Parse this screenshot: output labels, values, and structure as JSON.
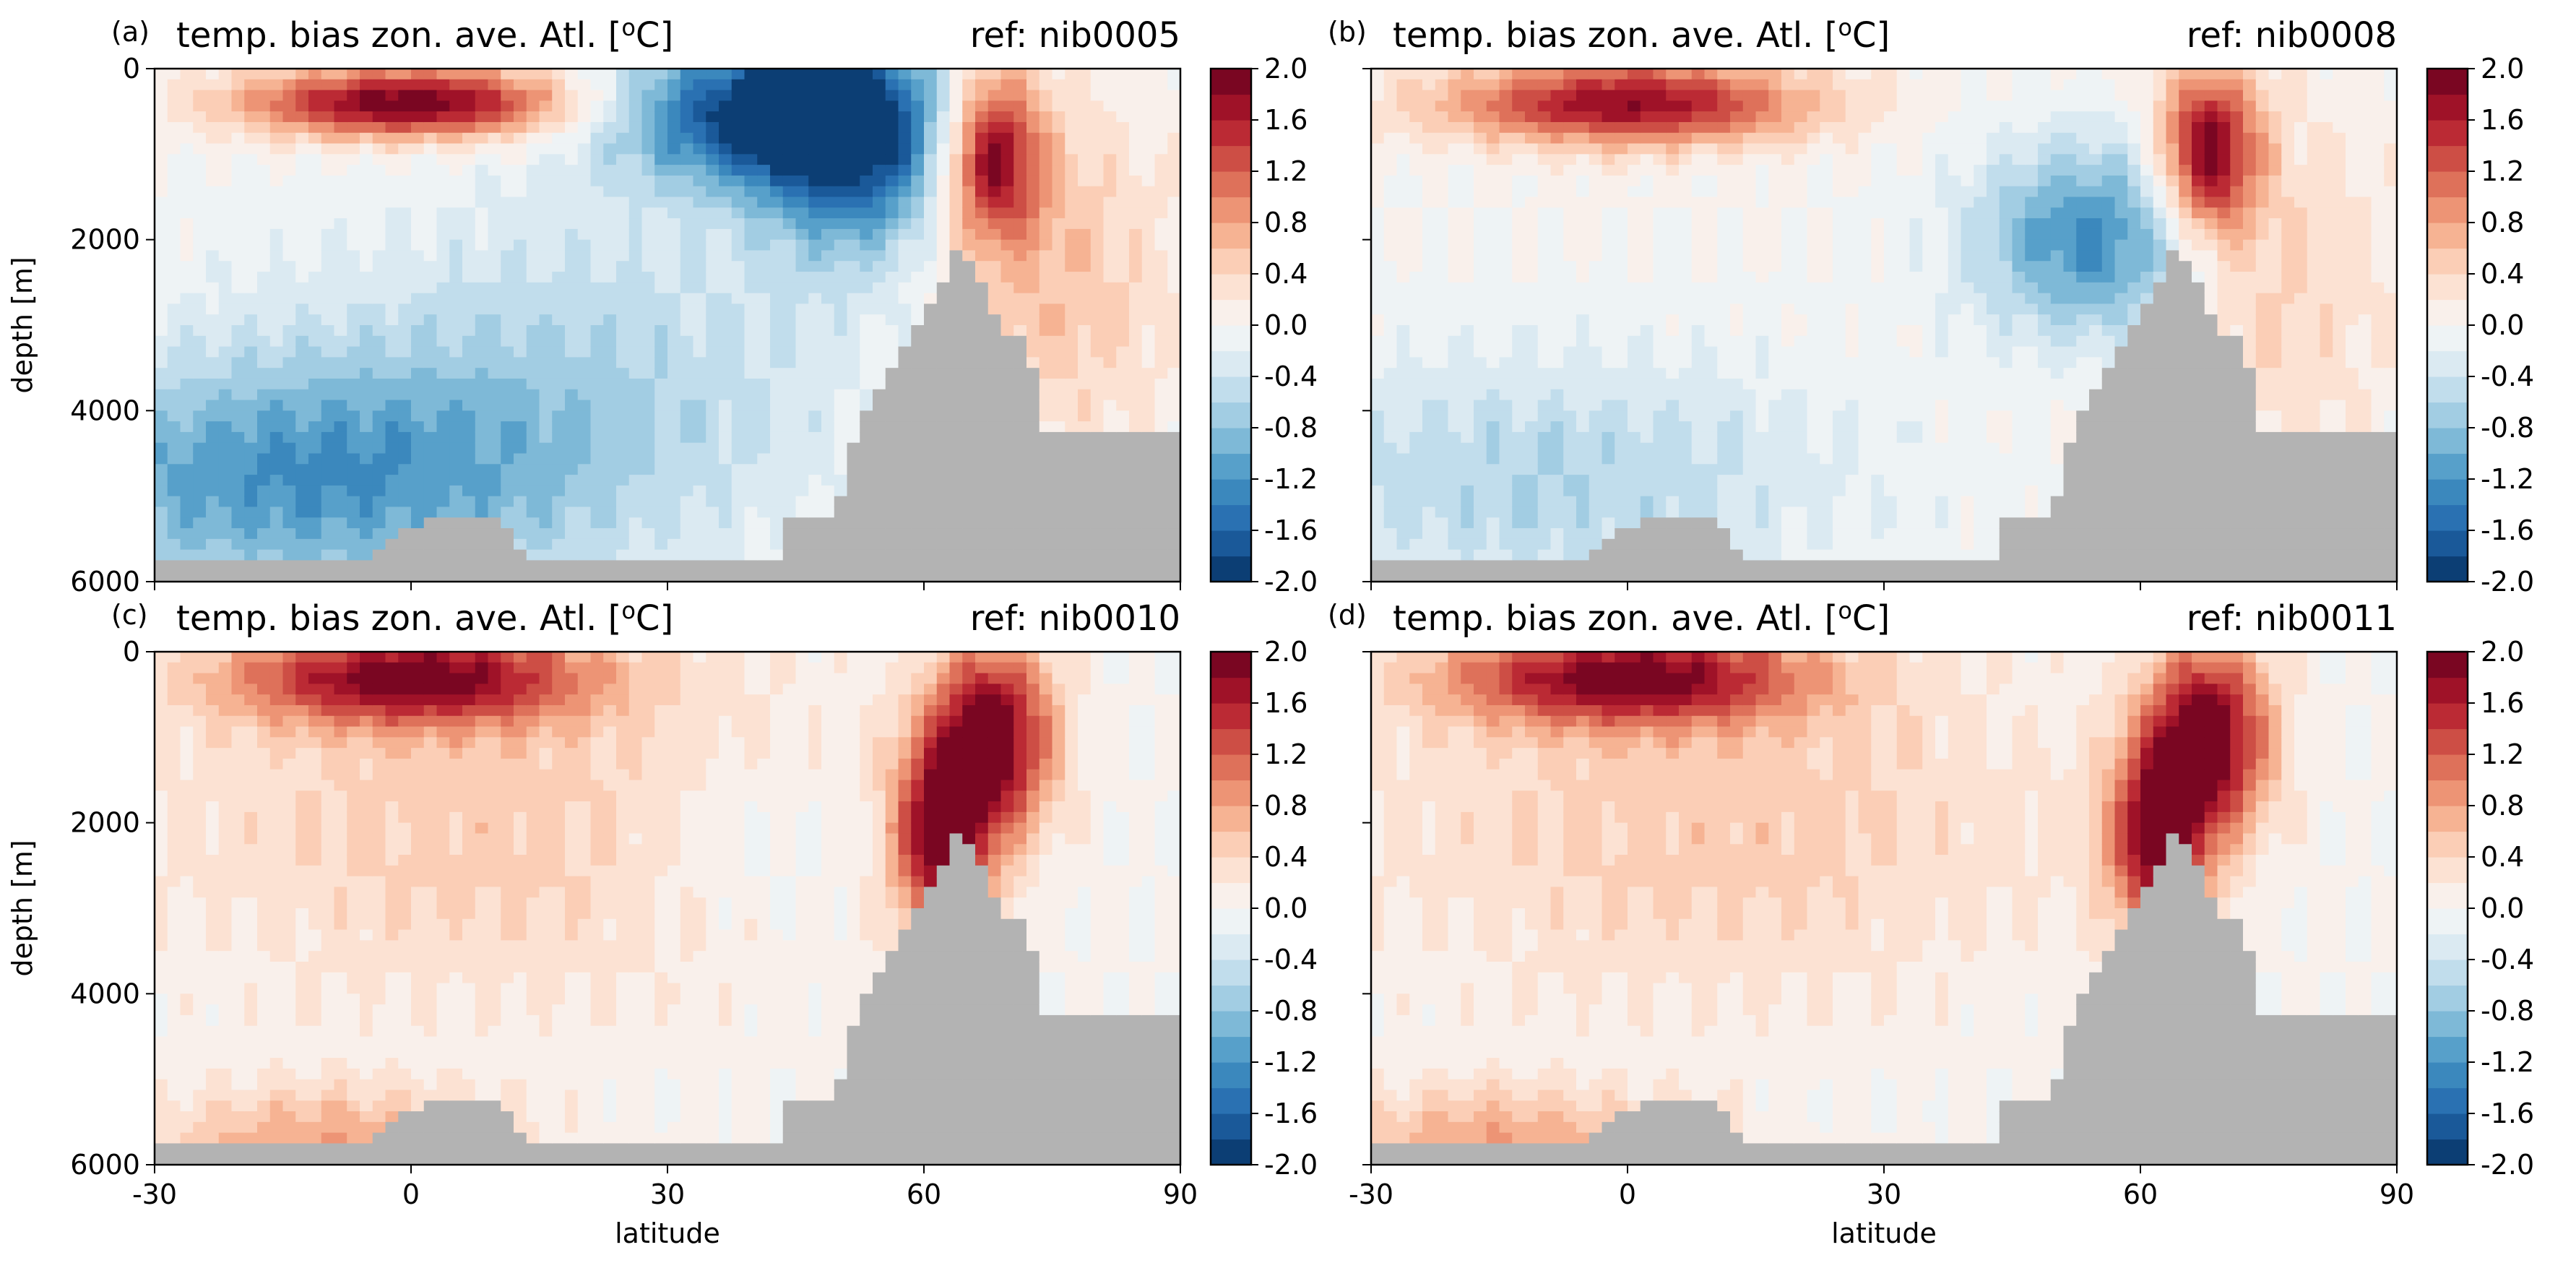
{
  "figure": {
    "colormap": "RdBu_r",
    "missing_color": "#b3b3b3",
    "levels": [
      -2.0,
      -1.8,
      -1.6,
      -1.4,
      -1.2,
      -1.0,
      -0.8,
      -0.6,
      -0.4,
      -0.2,
      0.0,
      0.2,
      0.4,
      0.6,
      0.8,
      1.0,
      1.2,
      1.4,
      1.6,
      1.8,
      2.0
    ],
    "colorbar_ticks": [
      "2.0",
      "1.6",
      "1.2",
      "0.8",
      "0.4",
      "0.0",
      "-0.4",
      "-0.8",
      "-1.2",
      "-1.6",
      "-2.0"
    ],
    "x_ticks": [
      -30,
      0,
      30,
      60,
      90
    ],
    "y_ticks": [
      0,
      2000,
      4000,
      6000
    ]
  },
  "chart_data": [
    {
      "type": "heatmap",
      "panel": "(a)",
      "title": "temp. bias zon. ave. Atl. [",
      "title_sup": "o",
      "title_end": "C]",
      "ref": "ref: nib0005",
      "xlabel": "",
      "ylabel": "depth [m]",
      "xlim": [
        -30,
        90
      ],
      "ylim": [
        6000,
        0
      ],
      "clim": [
        -2.0,
        2.0
      ],
      "features": [
        {
          "lat": 0,
          "depth": 400,
          "value": 2.0,
          "sx": 14,
          "sy": 300
        },
        {
          "lat": 40,
          "depth": 500,
          "value": -1.8,
          "sx": 12,
          "sy": 600
        },
        {
          "lat": 52,
          "depth": 900,
          "value": -1.6,
          "sx": 8,
          "sy": 900
        },
        {
          "lat": 68,
          "depth": 1000,
          "value": 1.8,
          "sx": 4,
          "sy": 700
        },
        {
          "lat": 75,
          "depth": 2500,
          "value": 0.6,
          "sx": 10,
          "sy": 1500
        },
        {
          "lat": -15,
          "depth": 4800,
          "value": -1.1,
          "sx": 25,
          "sy": 1000
        },
        {
          "lat": 20,
          "depth": 3500,
          "value": -0.5,
          "sx": 25,
          "sy": 1500
        }
      ]
    },
    {
      "type": "heatmap",
      "panel": "(b)",
      "title": "temp. bias zon. ave. Atl. [",
      "title_sup": "o",
      "title_end": "C]",
      "ref": "ref: nib0008",
      "xlabel": "",
      "ylabel": "",
      "xlim": [
        -30,
        90
      ],
      "ylim": [
        6000,
        0
      ],
      "clim": [
        -2.0,
        2.0
      ],
      "features": [
        {
          "lat": 0,
          "depth": 400,
          "value": 1.8,
          "sx": 15,
          "sy": 350
        },
        {
          "lat": 55,
          "depth": 2000,
          "value": -1.3,
          "sx": 10,
          "sy": 800
        },
        {
          "lat": 68,
          "depth": 1000,
          "value": 1.9,
          "sx": 4,
          "sy": 700
        },
        {
          "lat": 75,
          "depth": 2500,
          "value": 0.5,
          "sx": 10,
          "sy": 1500
        },
        {
          "lat": -10,
          "depth": 4800,
          "value": -0.6,
          "sx": 25,
          "sy": 1000
        }
      ]
    },
    {
      "type": "heatmap",
      "panel": "(c)",
      "title": "temp. bias zon. ave. Atl. [",
      "title_sup": "o",
      "title_end": "C]",
      "ref": "ref: nib0010",
      "xlabel": "latitude",
      "ylabel": "depth [m]",
      "xlim": [
        -30,
        90
      ],
      "ylim": [
        6000,
        0
      ],
      "clim": [
        -2.0,
        2.0
      ],
      "features": [
        {
          "lat": 0,
          "depth": 300,
          "value": 1.8,
          "sx": 15,
          "sy": 400
        },
        {
          "lat": 68,
          "depth": 1000,
          "value": 2.0,
          "sx": 5,
          "sy": 800
        },
        {
          "lat": 62,
          "depth": 2200,
          "value": 1.8,
          "sx": 4,
          "sy": 800
        },
        {
          "lat": 40,
          "depth": 2300,
          "value": -0.3,
          "sx": 10,
          "sy": 700
        },
        {
          "lat": 10,
          "depth": 2000,
          "value": 0.5,
          "sx": 30,
          "sy": 1500
        },
        {
          "lat": -10,
          "depth": 5800,
          "value": 0.8,
          "sx": 15,
          "sy": 500
        }
      ]
    },
    {
      "type": "heatmap",
      "panel": "(d)",
      "title": "temp. bias zon. ave. Atl. [",
      "title_sup": "o",
      "title_end": "C]",
      "ref": "ref: nib0011",
      "xlabel": "latitude",
      "ylabel": "",
      "xlim": [
        -30,
        90
      ],
      "ylim": [
        6000,
        0
      ],
      "clim": [
        -2.0,
        2.0
      ],
      "features": [
        {
          "lat": 0,
          "depth": 300,
          "value": 1.8,
          "sx": 15,
          "sy": 400
        },
        {
          "lat": 68,
          "depth": 1000,
          "value": 2.0,
          "sx": 5,
          "sy": 800
        },
        {
          "lat": 62,
          "depth": 2200,
          "value": 1.8,
          "sx": 4,
          "sy": 800
        },
        {
          "lat": 10,
          "depth": 2000,
          "value": 0.5,
          "sx": 30,
          "sy": 1500
        },
        {
          "lat": -15,
          "depth": 5800,
          "value": 0.8,
          "sx": 15,
          "sy": 500
        }
      ]
    }
  ]
}
